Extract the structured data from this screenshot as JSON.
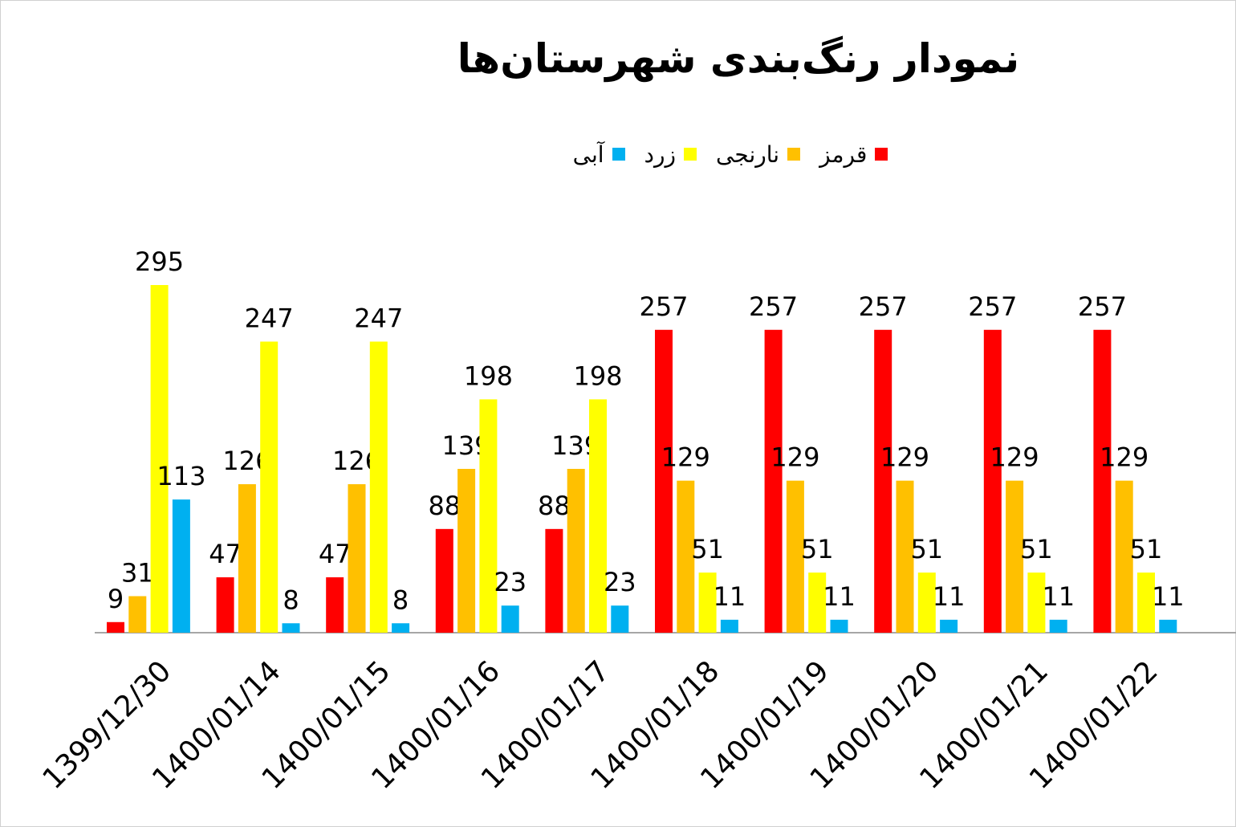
{
  "chart_data": {
    "type": "bar",
    "title": "نمودار رنگ‌بندی شهرستان‌ها",
    "categories": [
      "1399/12/30",
      "1400/01/14",
      "1400/01/15",
      "1400/01/16",
      "1400/01/17",
      "1400/01/18",
      "1400/01/19",
      "1400/01/20",
      "1400/01/21",
      "1400/01/22"
    ],
    "series": [
      {
        "name": "قرمز",
        "color": "#ff0000",
        "values": [
          9,
          47,
          47,
          88,
          88,
          257,
          257,
          257,
          257,
          257
        ]
      },
      {
        "name": "نارنجی",
        "color": "#ffc000",
        "values": [
          31,
          126,
          126,
          139,
          139,
          129,
          129,
          129,
          129,
          129
        ]
      },
      {
        "name": "زرد",
        "color": "#ffff00",
        "values": [
          295,
          247,
          247,
          198,
          198,
          51,
          51,
          51,
          51,
          51
        ]
      },
      {
        "name": "آبی",
        "color": "#00b0f0",
        "values": [
          113,
          8,
          8,
          23,
          23,
          11,
          11,
          11,
          11,
          11
        ]
      }
    ],
    "legend_position": "top",
    "ylim": [
      0,
      295
    ],
    "grid": false,
    "data_labels": true
  }
}
